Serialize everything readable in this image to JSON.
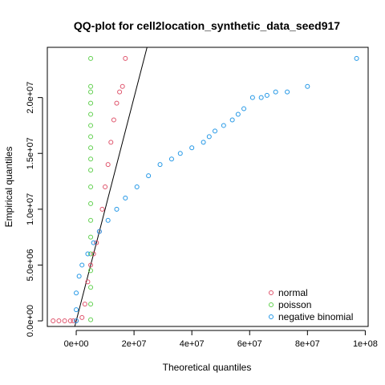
{
  "chart_data": {
    "type": "scatter",
    "title": "QQ-plot for cell2location_synthetic_data_seed917",
    "xlabel": "Theoretical quantiles",
    "ylabel": "Empirical quantiles",
    "xlim": [
      -10000000,
      101000000
    ],
    "ylim": [
      -500000,
      24500000
    ],
    "xticks": [
      0,
      20000000,
      40000000,
      60000000,
      80000000,
      100000000
    ],
    "xtick_labels": [
      "0e+00",
      "2e+07",
      "4e+07",
      "6e+07",
      "8e+07",
      "1e+08"
    ],
    "yticks": [
      0,
      5000000,
      10000000,
      15000000,
      20000000
    ],
    "ytick_labels": [
      "0.0e+00",
      "5.0e+06",
      "1.0e+07",
      "1.5e+07",
      "2.0e+07"
    ],
    "reference_line": {
      "x": [
        -500000,
        24500000
      ],
      "y": [
        -500000,
        24500000
      ]
    },
    "legend_position": "bottom-right",
    "grid": false,
    "series": [
      {
        "name": "normal",
        "color": "#DF536B",
        "points": [
          [
            -8000000,
            0
          ],
          [
            -6000000,
            0
          ],
          [
            -4000000,
            0
          ],
          [
            -2000000,
            0
          ],
          [
            -1000000,
            0
          ],
          [
            0,
            0
          ],
          [
            2000000,
            300000
          ],
          [
            3000000,
            1500000
          ],
          [
            4000000,
            3500000
          ],
          [
            5000000,
            5000000
          ],
          [
            6000000,
            6000000
          ],
          [
            7000000,
            7000000
          ],
          [
            8000000,
            8000000
          ],
          [
            9000000,
            10000000
          ],
          [
            10000000,
            12000000
          ],
          [
            11000000,
            14000000
          ],
          [
            12000000,
            16000000
          ],
          [
            13000000,
            18000000
          ],
          [
            14000000,
            19500000
          ],
          [
            15000000,
            20500000
          ],
          [
            16000000,
            21000000
          ],
          [
            17000000,
            23500000
          ]
        ]
      },
      {
        "name": "poisson",
        "color": "#61D04F",
        "points": [
          [
            5000000,
            100000
          ],
          [
            5000000,
            1500000
          ],
          [
            5000000,
            3000000
          ],
          [
            5000000,
            4500000
          ],
          [
            5000000,
            6000000
          ],
          [
            5000000,
            7500000
          ],
          [
            5000000,
            9000000
          ],
          [
            5000000,
            10500000
          ],
          [
            5000000,
            12000000
          ],
          [
            5000000,
            13500000
          ],
          [
            5000000,
            14500000
          ],
          [
            5000000,
            15500000
          ],
          [
            5000000,
            16500000
          ],
          [
            5000000,
            17500000
          ],
          [
            5000000,
            18500000
          ],
          [
            5000000,
            19500000
          ],
          [
            5000000,
            20500000
          ],
          [
            5000000,
            21000000
          ],
          [
            5000000,
            23500000
          ]
        ]
      },
      {
        "name": "negative binomial",
        "color": "#2297E6",
        "points": [
          [
            0,
            0
          ],
          [
            0,
            1000000
          ],
          [
            0,
            2500000
          ],
          [
            1000000,
            4000000
          ],
          [
            2000000,
            5000000
          ],
          [
            4000000,
            6000000
          ],
          [
            6000000,
            7000000
          ],
          [
            8000000,
            8000000
          ],
          [
            11000000,
            9000000
          ],
          [
            14000000,
            10000000
          ],
          [
            17000000,
            11000000
          ],
          [
            21000000,
            12000000
          ],
          [
            25000000,
            13000000
          ],
          [
            29000000,
            14000000
          ],
          [
            33000000,
            14500000
          ],
          [
            36000000,
            15000000
          ],
          [
            40000000,
            15500000
          ],
          [
            44000000,
            16000000
          ],
          [
            46000000,
            16500000
          ],
          [
            48000000,
            17000000
          ],
          [
            51000000,
            17500000
          ],
          [
            54000000,
            18000000
          ],
          [
            56000000,
            18500000
          ],
          [
            58000000,
            19000000
          ],
          [
            61000000,
            20000000
          ],
          [
            64000000,
            20000000
          ],
          [
            66000000,
            20200000
          ],
          [
            69000000,
            20500000
          ],
          [
            73000000,
            20500000
          ],
          [
            80000000,
            21000000
          ],
          [
            97000000,
            23500000
          ]
        ]
      }
    ]
  }
}
